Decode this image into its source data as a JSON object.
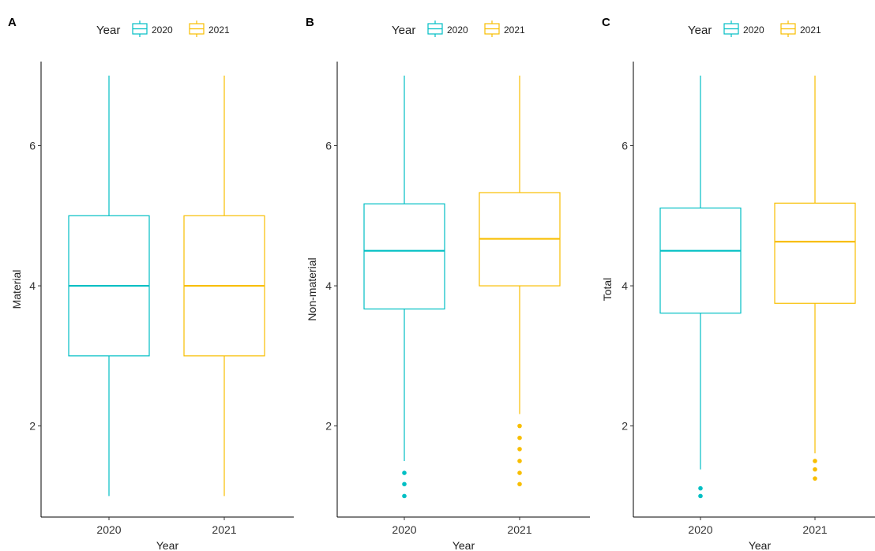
{
  "colors": {
    "y2020": "#00BFC4",
    "y2021": "#F8BE00",
    "axis": "#000000"
  },
  "chart_data": [
    {
      "panel": "A",
      "type": "box",
      "legend": {
        "title": "Year",
        "entries": [
          "2020",
          "2021"
        ],
        "placement": "top"
      },
      "xlabel": "Year",
      "ylabel": "Material",
      "categories": [
        "2020",
        "2021"
      ],
      "ylim": [
        0.7,
        7.2
      ],
      "yticks": [
        2,
        4,
        6
      ],
      "grid": false,
      "boxes": [
        {
          "category": "2020",
          "whisker_low": 1.0,
          "q1": 3.0,
          "median": 4.0,
          "q3": 5.0,
          "whisker_high": 7.0,
          "outliers": []
        },
        {
          "category": "2021",
          "whisker_low": 1.0,
          "q1": 3.0,
          "median": 4.0,
          "q3": 5.0,
          "whisker_high": 7.0,
          "outliers": []
        }
      ]
    },
    {
      "panel": "B",
      "type": "box",
      "legend": {
        "title": "Year",
        "entries": [
          "2020",
          "2021"
        ],
        "placement": "top"
      },
      "xlabel": "Year",
      "ylabel": "Non-material",
      "categories": [
        "2020",
        "2021"
      ],
      "ylim": [
        0.7,
        7.2
      ],
      "yticks": [
        2,
        4,
        6
      ],
      "grid": false,
      "boxes": [
        {
          "category": "2020",
          "whisker_low": 1.5,
          "q1": 3.67,
          "median": 4.5,
          "q3": 5.17,
          "whisker_high": 7.0,
          "outliers": [
            1.0,
            1.17,
            1.33
          ]
        },
        {
          "category": "2021",
          "whisker_low": 2.17,
          "q1": 4.0,
          "median": 4.67,
          "q3": 5.33,
          "whisker_high": 7.0,
          "outliers": [
            1.17,
            1.33,
            1.5,
            1.67,
            1.83,
            2.0
          ]
        }
      ]
    },
    {
      "panel": "C",
      "type": "box",
      "legend": {
        "title": "Year",
        "entries": [
          "2020",
          "2021"
        ],
        "placement": "top"
      },
      "xlabel": "Year",
      "ylabel": "Total",
      "categories": [
        "2020",
        "2021"
      ],
      "ylim": [
        0.7,
        7.2
      ],
      "yticks": [
        2,
        4,
        6
      ],
      "grid": false,
      "boxes": [
        {
          "category": "2020",
          "whisker_low": 1.38,
          "q1": 3.61,
          "median": 4.5,
          "q3": 5.11,
          "whisker_high": 7.0,
          "outliers": [
            1.0,
            1.11
          ]
        },
        {
          "category": "2021",
          "whisker_low": 1.61,
          "q1": 3.75,
          "median": 4.63,
          "q3": 5.18,
          "whisker_high": 7.0,
          "outliers": [
            1.25,
            1.38,
            1.5
          ]
        }
      ]
    }
  ]
}
